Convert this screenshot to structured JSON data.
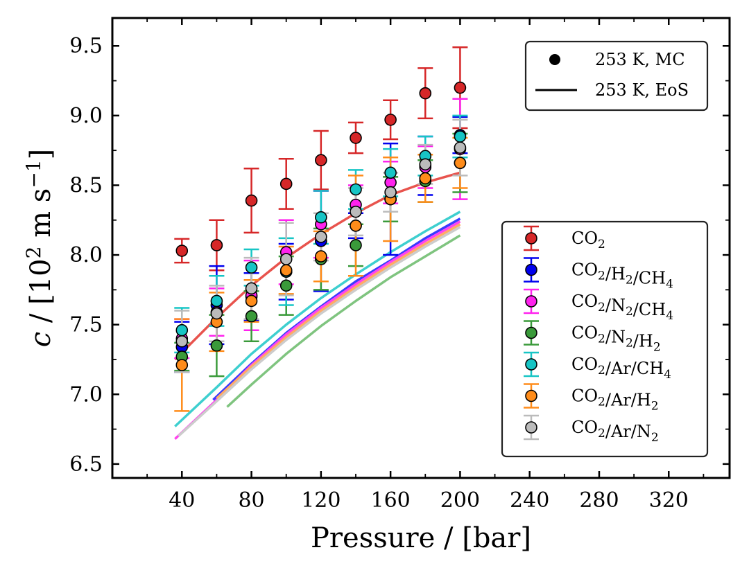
{
  "chart_data": {
    "type": "scatter",
    "xlabel": "Pressure / [bar]",
    "ylabel": {
      "symbol": "c",
      "sep": " / [10",
      "exp1": "2",
      "mid": " m s",
      "exp2": "−1",
      "end": "]"
    },
    "xlim": [
      0,
      355
    ],
    "ylim": [
      6.4,
      9.7
    ],
    "xticks": [
      40,
      80,
      120,
      160,
      200,
      240,
      280,
      320
    ],
    "yticks": [
      6.5,
      7.0,
      7.5,
      8.0,
      8.5,
      9.0,
      9.5
    ],
    "ytick_labels": [
      "6.5",
      "7.0",
      "7.5",
      "8.0",
      "8.5",
      "9.0",
      "9.5"
    ],
    "x": [
      40,
      60,
      80,
      100,
      120,
      140,
      160,
      180,
      200
    ],
    "legend_top": [
      {
        "kind": "marker",
        "label": "253 K, MC"
      },
      {
        "kind": "line",
        "label": "253 K, EoS"
      }
    ],
    "series": [
      {
        "name": "CO2",
        "label": {
          "parts": [
            {
              "t": "CO"
            },
            {
              "t": "2",
              "sub": true
            }
          ]
        },
        "color": "#d62728",
        "line_color": "#e8534d",
        "values": [
          8.03,
          8.07,
          8.39,
          8.51,
          8.68,
          8.84,
          8.97,
          9.16,
          9.2
        ],
        "errors": [
          0.085,
          0.18,
          0.23,
          0.18,
          0.21,
          0.11,
          0.14,
          0.18,
          0.29
        ],
        "eos": [
          [
            36,
            7.25
          ],
          [
            60,
            7.55
          ],
          [
            80,
            7.78
          ],
          [
            100,
            7.98
          ],
          [
            120,
            8.15
          ],
          [
            140,
            8.3
          ],
          [
            160,
            8.43
          ],
          [
            180,
            8.52
          ],
          [
            200,
            8.59
          ]
        ]
      },
      {
        "name": "CO2/H2/CH4",
        "label": {
          "parts": [
            {
              "t": "CO"
            },
            {
              "t": "2",
              "sub": true
            },
            {
              "t": "/H"
            },
            {
              "t": "2",
              "sub": true
            },
            {
              "t": "/CH"
            },
            {
              "t": "4",
              "sub": true
            }
          ]
        },
        "color": "#0000ee",
        "line_color": "#3a3aff",
        "values": [
          7.34,
          7.64,
          7.7,
          7.88,
          8.1,
          8.21,
          8.4,
          8.64,
          8.86
        ],
        "errors": [
          0.18,
          0.28,
          0.17,
          0.2,
          0.36,
          0.09,
          0.4,
          0.21,
          0.13
        ],
        "eos": [
          [
            58,
            6.96
          ],
          [
            80,
            7.22
          ],
          [
            100,
            7.44
          ],
          [
            120,
            7.63
          ],
          [
            140,
            7.81
          ],
          [
            160,
            7.96
          ],
          [
            180,
            8.12
          ],
          [
            200,
            8.26
          ]
        ]
      },
      {
        "name": "CO2/N2/CH4",
        "label": {
          "parts": [
            {
              "t": "CO"
            },
            {
              "t": "2",
              "sub": true
            },
            {
              "t": "/N"
            },
            {
              "t": "2",
              "sub": true
            },
            {
              "t": "/CH"
            },
            {
              "t": "4",
              "sub": true
            }
          ]
        },
        "color": "#ff22ee",
        "line_color": "#ff44ee",
        "values": [
          7.4,
          7.59,
          7.71,
          8.02,
          8.22,
          8.36,
          8.52,
          8.63,
          8.76
        ],
        "errors": [
          0.14,
          0.17,
          0.25,
          0.23,
          0.24,
          0.14,
          0.15,
          0.15,
          0.36
        ],
        "eos": [
          [
            36,
            6.68
          ],
          [
            60,
            6.96
          ],
          [
            80,
            7.21
          ],
          [
            100,
            7.43
          ],
          [
            120,
            7.62
          ],
          [
            140,
            7.79
          ],
          [
            160,
            7.95
          ],
          [
            180,
            8.1
          ],
          [
            200,
            8.24
          ]
        ]
      },
      {
        "name": "CO2/N2/H2",
        "label": {
          "parts": [
            {
              "t": "CO"
            },
            {
              "t": "2",
              "sub": true
            },
            {
              "t": "/N"
            },
            {
              "t": "2",
              "sub": true
            },
            {
              "t": "/H"
            },
            {
              "t": "2",
              "sub": true
            }
          ]
        },
        "color": "#3a9a3a",
        "line_color": "#7fc47f",
        "values": [
          7.27,
          7.35,
          7.56,
          7.78,
          7.97,
          8.07,
          8.4,
          8.53,
          8.66
        ],
        "errors": [
          0.1,
          0.22,
          0.18,
          0.21,
          0.22,
          0.15,
          0.16,
          0.15,
          0.21
        ],
        "eos": [
          [
            66,
            6.91
          ],
          [
            80,
            7.07
          ],
          [
            100,
            7.29
          ],
          [
            120,
            7.49
          ],
          [
            140,
            7.67
          ],
          [
            160,
            7.84
          ],
          [
            180,
            7.99
          ],
          [
            200,
            8.14
          ]
        ]
      },
      {
        "name": "CO2/Ar/CH4",
        "label": {
          "parts": [
            {
              "t": "CO"
            },
            {
              "t": "2",
              "sub": true
            },
            {
              "t": "/Ar/CH"
            },
            {
              "t": "4",
              "sub": true
            }
          ]
        },
        "color": "#17c5c5",
        "line_color": "#3ecfcf",
        "values": [
          7.46,
          7.67,
          7.91,
          7.88,
          8.27,
          8.47,
          8.59,
          8.71,
          8.85
        ],
        "errors": [
          0.16,
          0.18,
          0.13,
          0.24,
          0.19,
          0.14,
          0.17,
          0.14,
          0.15
        ],
        "eos": [
          [
            36,
            6.77
          ],
          [
            60,
            7.05
          ],
          [
            80,
            7.29
          ],
          [
            100,
            7.5
          ],
          [
            120,
            7.69
          ],
          [
            140,
            7.86
          ],
          [
            160,
            8.02
          ],
          [
            180,
            8.17
          ],
          [
            200,
            8.31
          ]
        ]
      },
      {
        "name": "CO2/Ar/H2",
        "label": {
          "parts": [
            {
              "t": "CO"
            },
            {
              "t": "2",
              "sub": true
            },
            {
              "t": "/Ar/H"
            },
            {
              "t": "2",
              "sub": true
            }
          ]
        },
        "color": "#ff8c1a",
        "line_color": "#ffaa66",
        "values": [
          7.21,
          7.52,
          7.67,
          7.89,
          7.99,
          8.21,
          8.4,
          8.55,
          8.66
        ],
        "errors": [
          0.33,
          0.21,
          0.15,
          0.17,
          0.18,
          0.36,
          0.3,
          0.17,
          0.18
        ],
        "eos": [
          [
            60,
            6.97
          ],
          [
            80,
            7.2
          ],
          [
            100,
            7.41
          ],
          [
            120,
            7.6
          ],
          [
            140,
            7.77
          ],
          [
            160,
            7.93
          ],
          [
            180,
            8.08
          ],
          [
            200,
            8.22
          ]
        ]
      },
      {
        "name": "CO2/Ar/N2",
        "label": {
          "parts": [
            {
              "t": "CO"
            },
            {
              "t": "2",
              "sub": true
            },
            {
              "t": "/Ar/N"
            },
            {
              "t": "2",
              "sub": true
            }
          ]
        },
        "color": "#bbbbbb",
        "line_color": "#cccccc",
        "values": [
          7.38,
          7.58,
          7.76,
          7.97,
          8.13,
          8.31,
          8.45,
          8.65,
          8.77
        ],
        "errors": [
          0.22,
          0.2,
          0.22,
          0.26,
          0.17,
          0.17,
          0.14,
          0.14,
          0.2
        ],
        "eos": [
          [
            38,
            6.7
          ],
          [
            60,
            6.95
          ],
          [
            80,
            7.18
          ],
          [
            100,
            7.39
          ],
          [
            120,
            7.58
          ],
          [
            140,
            7.75
          ],
          [
            160,
            7.91
          ],
          [
            180,
            8.06
          ],
          [
            200,
            8.2
          ]
        ]
      }
    ]
  }
}
